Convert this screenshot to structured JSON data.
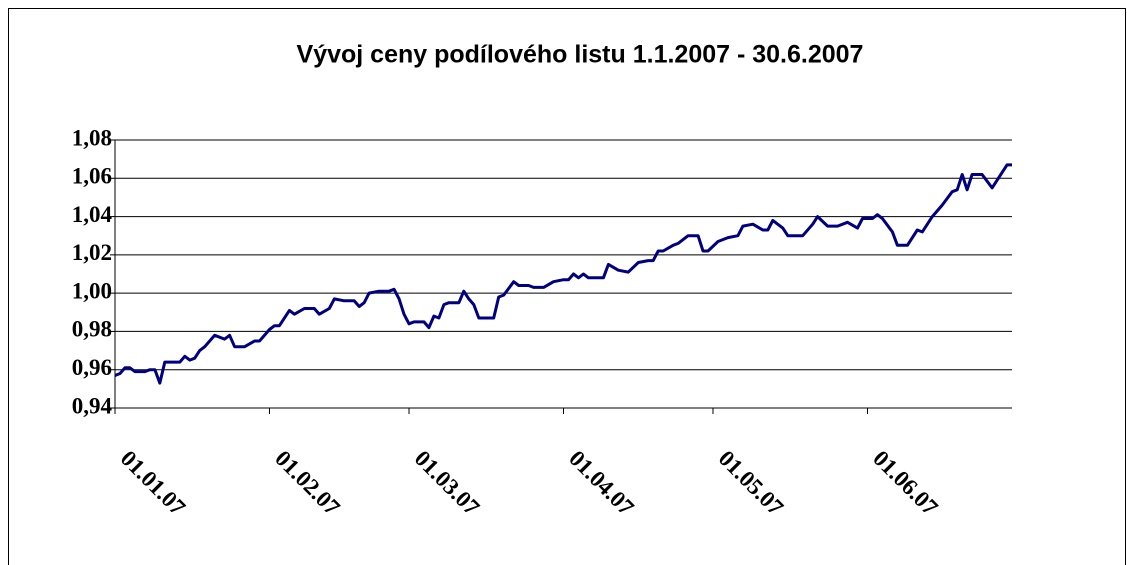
{
  "chart_data": {
    "type": "line",
    "title": "Vývoj ceny podílového listu 1.1.2007 - 30.6.2007",
    "x": [
      "01.01.07",
      "02.01.07",
      "03.01.07",
      "04.01.07",
      "05.01.07",
      "07.01.07",
      "08.01.07",
      "09.01.07",
      "10.01.07",
      "11.01.07",
      "13.01.07",
      "14.01.07",
      "15.01.07",
      "16.01.07",
      "17.01.07",
      "18.01.07",
      "19.01.07",
      "21.01.07",
      "23.01.07",
      "24.01.07",
      "25.01.07",
      "27.01.07",
      "29.01.07",
      "30.01.07",
      "01.02.07",
      "02.02.07",
      "03.02.07",
      "05.02.07",
      "06.02.07",
      "08.02.07",
      "10.02.07",
      "11.02.07",
      "13.02.07",
      "14.02.07",
      "16.02.07",
      "18.02.07",
      "19.02.07",
      "20.02.07",
      "21.02.07",
      "23.02.07",
      "25.02.07",
      "26.02.07",
      "27.02.07",
      "28.02.07",
      "01.03.07",
      "02.03.07",
      "04.03.07",
      "05.03.07",
      "06.03.07",
      "07.03.07",
      "08.03.07",
      "09.03.07",
      "11.03.07",
      "12.03.07",
      "13.03.07",
      "14.03.07",
      "15.03.07",
      "18.03.07",
      "19.03.07",
      "20.03.07",
      "22.03.07",
      "23.03.07",
      "25.03.07",
      "26.03.07",
      "28.03.07",
      "30.03.07",
      "01.04.07",
      "02.04.07",
      "03.04.07",
      "04.04.07",
      "05.04.07",
      "06.04.07",
      "09.04.07",
      "10.04.07",
      "12.04.07",
      "14.04.07",
      "16.04.07",
      "18.04.07",
      "19.04.07",
      "20.04.07",
      "21.04.07",
      "23.04.07",
      "24.04.07",
      "26.04.07",
      "28.04.07",
      "29.04.07",
      "30.04.07",
      "02.05.07",
      "04.05.07",
      "06.05.07",
      "07.05.07",
      "09.05.07",
      "11.05.07",
      "12.05.07",
      "13.05.07",
      "15.05.07",
      "16.05.07",
      "19.05.07",
      "21.05.07",
      "22.05.07",
      "24.05.07",
      "26.05.07",
      "28.05.07",
      "30.05.07",
      "31.05.07",
      "02.06.07",
      "03.06.07",
      "04.06.07",
      "06.06.07",
      "07.06.07",
      "09.06.07",
      "11.06.07",
      "12.06.07",
      "14.06.07",
      "16.06.07",
      "18.06.07",
      "19.06.07",
      "20.06.07",
      "21.06.07",
      "22.06.07",
      "24.06.07",
      "26.06.07",
      "29.06.07",
      "30.06.07"
    ],
    "series": [
      {
        "color": "#000080",
        "values": [
          0.957,
          0.958,
          0.961,
          0.961,
          0.959,
          0.959,
          0.96,
          0.96,
          0.953,
          0.964,
          0.964,
          0.964,
          0.967,
          0.965,
          0.966,
          0.97,
          0.972,
          0.978,
          0.976,
          0.978,
          0.972,
          0.972,
          0.975,
          0.975,
          0.981,
          0.983,
          0.983,
          0.991,
          0.989,
          0.992,
          0.992,
          0.989,
          0.992,
          0.997,
          0.996,
          0.996,
          0.993,
          0.995,
          1.0,
          1.001,
          1.001,
          1.002,
          0.997,
          0.989,
          0.984,
          0.985,
          0.985,
          0.982,
          0.988,
          0.987,
          0.994,
          0.995,
          0.995,
          1.001,
          0.997,
          0.994,
          0.987,
          0.987,
          0.998,
          0.999,
          1.006,
          1.004,
          1.004,
          1.003,
          1.003,
          1.006,
          1.007,
          1.007,
          1.01,
          1.008,
          1.01,
          1.008,
          1.008,
          1.015,
          1.012,
          1.011,
          1.016,
          1.017,
          1.017,
          1.022,
          1.022,
          1.025,
          1.026,
          1.03,
          1.03,
          1.022,
          1.022,
          1.027,
          1.029,
          1.03,
          1.035,
          1.036,
          1.033,
          1.033,
          1.038,
          1.034,
          1.03,
          1.03,
          1.036,
          1.04,
          1.035,
          1.035,
          1.037,
          1.034,
          1.039,
          1.039,
          1.041,
          1.039,
          1.032,
          1.025,
          1.025,
          1.033,
          1.032,
          1.04,
          1.046,
          1.053,
          1.054,
          1.062,
          1.054,
          1.062,
          1.062,
          1.055,
          1.067,
          1.067
        ]
      }
    ],
    "xlim": [
      "01.01.07",
      "30.06.07"
    ],
    "xticks": [
      "01.01.07",
      "01.02.07",
      "01.03.07",
      "01.04.07",
      "01.05.07",
      "01.06.07"
    ],
    "ylim": [
      0.94,
      1.08
    ],
    "yticks": [
      {
        "value": 0.94,
        "label": "0,94"
      },
      {
        "value": 0.96,
        "label": "0,96"
      },
      {
        "value": 0.98,
        "label": "0,98"
      },
      {
        "value": 1.0,
        "label": "1,00"
      },
      {
        "value": 1.02,
        "label": "1,02"
      },
      {
        "value": 1.04,
        "label": "1,04"
      },
      {
        "value": 1.06,
        "label": "1,06"
      },
      {
        "value": 1.08,
        "label": "1,08"
      }
    ],
    "grid": true
  }
}
